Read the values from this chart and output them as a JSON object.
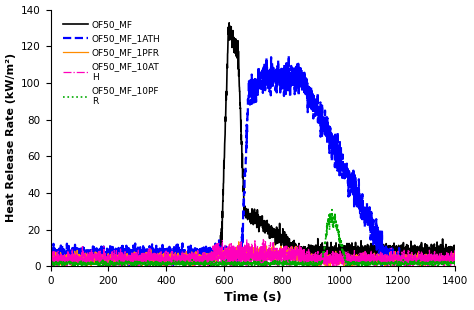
{
  "title": "",
  "xlabel": "Time (s)",
  "ylabel": "Heat Release Rate (kW/m²)",
  "xlim": [
    0,
    1400
  ],
  "ylim": [
    0,
    140
  ],
  "xticks": [
    0,
    200,
    400,
    600,
    800,
    1000,
    1200,
    1400
  ],
  "yticks": [
    0,
    20,
    40,
    60,
    80,
    100,
    120,
    140
  ],
  "series": [
    {
      "label": "OF50_MF",
      "color": "#000000",
      "linestyle": "solid",
      "linewidth": 1.2
    },
    {
      "label": "OF50_MF_1ATH",
      "color": "#0000FF",
      "linestyle": "dashed",
      "linewidth": 1.6
    },
    {
      "label": "OF50_MF_1PFR",
      "color": "#FF8C00",
      "linestyle": "solid",
      "linewidth": 0.9
    },
    {
      "label": "OF50_MF_10ATH",
      "color": "#FF00BB",
      "linestyle": "dashdot",
      "linewidth": 0.9
    },
    {
      "label": "OF50_MF_10PFR",
      "color": "#00AA00",
      "linestyle": "dotted",
      "linewidth": 1.2
    }
  ],
  "legend_labels": [
    "OF50_MF",
    "OF50_MF_1ATH",
    "OF50_MF_1PFR",
    "OF50_MF_10AT\nH",
    "OF50_MF_10PF\nR"
  ]
}
